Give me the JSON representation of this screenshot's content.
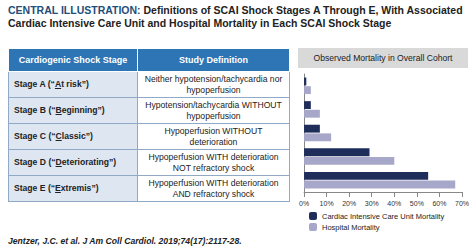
{
  "header": {
    "label": "CENTRAL ILLUSTRATION:",
    "title": "Definitions of SCAI Shock Stages A Through E, With Associated Cardiac Intensive Care Unit and Hospital Mortality in Each SCAI Shock Stage"
  },
  "table": {
    "columns": [
      "Cardiogenic Shock Stage",
      "Study Definition"
    ],
    "rows": [
      [
        "Stage A (“At risk”)",
        "Neither hypotension/tachycardia nor hypoperfusion"
      ],
      [
        "Stage B (“Beginning”)",
        "Hypotension/tachycardia WITHOUT hypoperfusion"
      ],
      [
        "Stage C (“Classic”)",
        "Hypoperfusion WITHOUT deterioration"
      ],
      [
        "Stage D (“Deteriorating”)",
        "Hypoperfusion WITH deterioration NOT refractory shock"
      ],
      [
        "Stage E (“Extremis”)",
        "Hypoperfusion WITH deterioration AND refractory shock"
      ]
    ]
  },
  "chart_data": {
    "type": "bar",
    "title": "Observed Mortality in Overall Cohort",
    "orientation": "horizontal",
    "categories": [
      null,
      null,
      null,
      null,
      null
    ],
    "series": [
      {
        "name": "Cardiac Intensive Care Unit Mortality",
        "color": "#1f2d5a",
        "values": [
          1,
          3,
          7,
          29,
          55
        ]
      },
      {
        "name": "Hospital Mortality",
        "color": "#a7a7c9",
        "values": [
          3,
          7,
          12,
          40,
          67
        ]
      }
    ],
    "xlim": [
      0,
      70
    ],
    "xticks": [
      {
        "value": 0,
        "label": "0%"
      },
      {
        "value": 10,
        "label": "10%"
      },
      {
        "value": 20,
        "label": "20%"
      },
      {
        "value": 30,
        "label": "30%"
      },
      {
        "value": 40,
        "label": "40%"
      },
      {
        "value": 50,
        "label": "50%"
      },
      {
        "value": 60,
        "label": "60%"
      },
      {
        "value": 70,
        "label": "70%"
      }
    ],
    "grid": false,
    "legend": "bottom",
    "tick_labels": "x"
  },
  "footer": "Jentzer, J.C. et al. J Am Coll Cardiol. 2019;74(17):2117-28."
}
